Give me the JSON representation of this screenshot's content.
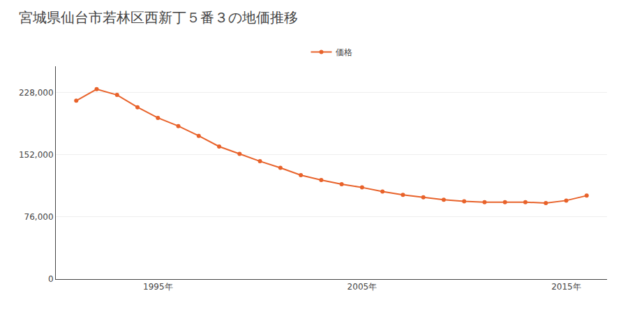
{
  "chart_data": {
    "type": "line",
    "title": "宮城県仙台市若林区西新丁５番３の地価推移",
    "x": [
      1991,
      1992,
      1993,
      1994,
      1995,
      1996,
      1997,
      1998,
      1999,
      2000,
      2001,
      2002,
      2003,
      2004,
      2005,
      2006,
      2007,
      2008,
      2009,
      2010,
      2011,
      2012,
      2013,
      2014,
      2015,
      2016
    ],
    "series": [
      {
        "name": "価格",
        "color": "#e8622a",
        "marker": "circle",
        "values": [
          218000,
          232000,
          225000,
          210000,
          197000,
          187000,
          175000,
          162000,
          153000,
          144000,
          136000,
          127000,
          121000,
          116000,
          112000,
          107000,
          103000,
          100000,
          97000,
          95000,
          94000,
          94000,
          94000,
          93000,
          96000,
          102000
        ]
      }
    ],
    "xlim": [
      1990,
      2017
    ],
    "xticks": [
      {
        "value": 1995,
        "label": "1995年"
      },
      {
        "value": 2005,
        "label": "2005年"
      },
      {
        "value": 2015,
        "label": "2015年"
      }
    ],
    "ylim": [
      0,
      260000
    ],
    "yticks": [
      0,
      {
        "value": 76000,
        "label": "76,000"
      },
      {
        "value": 152000,
        "label": "152,000"
      },
      {
        "value": 228000,
        "label": "228,000"
      }
    ],
    "grid": true,
    "legend": "top"
  }
}
